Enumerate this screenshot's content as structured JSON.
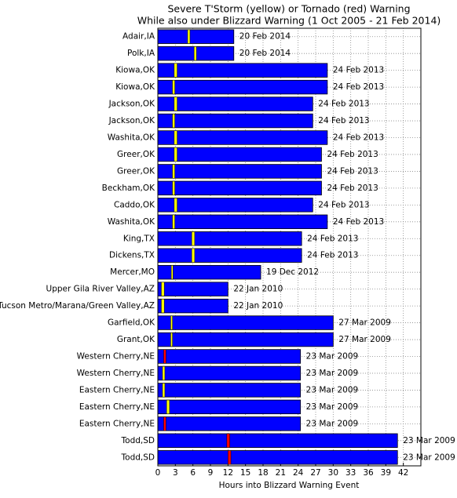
{
  "chart_data": {
    "type": "bar",
    "orientation": "horizontal",
    "title": "Severe T'Storm (yellow) or Tornado (red) Warning",
    "subtitle": "While also under Blizzard Warning (1 Oct 2005 - 21 Feb 2014)",
    "x_label": "Hours into Blizzard Warning Event",
    "categories": [
      "Adair,IA",
      "Polk,IA",
      "Kiowa,OK",
      "Kiowa,OK",
      "Jackson,OK",
      "Jackson,OK",
      "Washita,OK",
      "Greer,OK",
      "Greer,OK",
      "Beckham,OK",
      "Caddo,OK",
      "Washita,OK",
      "King,TX",
      "Dickens,TX",
      "Mercer,MO",
      "Upper Gila River Valley,AZ",
      "Tucson Metro/Marana/Green Valley,AZ",
      "Garfield,OK",
      "Grant,OK",
      "Western Cherry,NE",
      "Western Cherry,NE",
      "Eastern Cherry,NE",
      "Eastern Cherry,NE",
      "Eastern Cherry,NE",
      "Todd,SD",
      "Todd,SD"
    ],
    "values": [
      13,
      13,
      29,
      29,
      26.5,
      26.5,
      29,
      28,
      28,
      28,
      26.5,
      29,
      24.6,
      24.6,
      17.6,
      12,
      12,
      30,
      30,
      24.4,
      24.4,
      24.4,
      24.4,
      24.4,
      41,
      41
    ],
    "dates": [
      "20 Feb 2014",
      "20 Feb 2014",
      "24 Feb 2013",
      "24 Feb 2013",
      "24 Feb 2013",
      "24 Feb 2013",
      "24 Feb 2013",
      "24 Feb 2013",
      "24 Feb 2013",
      "24 Feb 2013",
      "24 Feb 2013",
      "24 Feb 2013",
      "24 Feb 2013",
      "24 Feb 2013",
      "19 Dec 2012",
      "22 Jan 2010",
      "22 Jan 2010",
      "27 Mar 2009",
      "27 Mar 2009",
      "23 Mar 2009",
      "23 Mar 2009",
      "23 Mar 2009",
      "23 Mar 2009",
      "23 Mar 2009",
      "23 Mar 2009",
      "23 Mar 2009"
    ],
    "color": "#0000ff",
    "warning_starts": [
      5.1,
      6.2,
      2.8,
      2.5,
      2.8,
      2.5,
      2.8,
      2.8,
      2.5,
      2.5,
      2.8,
      2.5,
      5.8,
      5.8,
      2.3,
      0.6,
      0.6,
      2.2,
      2.2,
      1.0,
      0.8,
      0.8,
      1.5,
      1.0,
      11.8,
      12.0
    ],
    "warning_lengths": [
      0.4,
      0.4,
      0.5,
      0.4,
      0.5,
      0.4,
      0.5,
      0.5,
      0.4,
      0.4,
      0.5,
      0.4,
      0.5,
      0.5,
      0.3,
      0.5,
      0.5,
      0.3,
      0.3,
      0.4,
      0.4,
      0.4,
      0.5,
      0.4,
      0.5,
      0.5
    ],
    "warning_colors": [
      "#ffff00",
      "#ffff00",
      "#ffff00",
      "#ffff00",
      "#ffff00",
      "#ffff00",
      "#ffff00",
      "#ffff00",
      "#ffff00",
      "#ffff00",
      "#ffff00",
      "#ffff00",
      "#ffff00",
      "#ffff00",
      "#ffff00",
      "#ffff00",
      "#ffff00",
      "#ffff00",
      "#ffff00",
      "#ff0000",
      "#ffff00",
      "#ffff00",
      "#ffff00",
      "#ff0000",
      "#ff0000",
      "#ff0000"
    ],
    "xlim": [
      0,
      45
    ],
    "xticks": [
      0,
      3,
      6,
      9,
      12,
      15,
      18,
      21,
      24,
      27,
      30,
      33,
      36,
      39,
      42
    ],
    "grid": true
  }
}
